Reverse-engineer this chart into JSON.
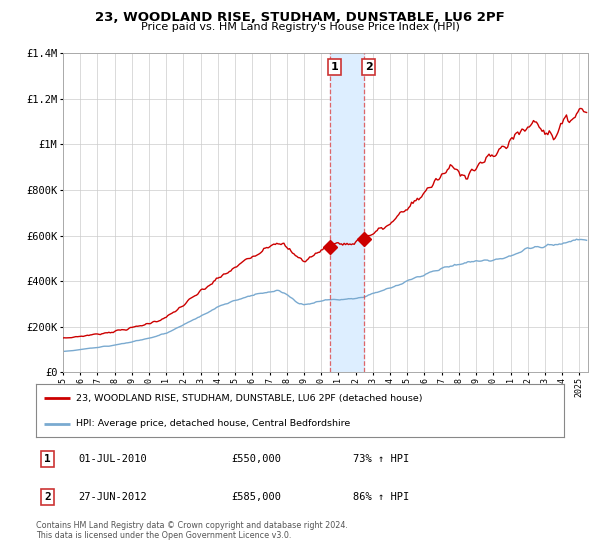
{
  "title": "23, WOODLAND RISE, STUDHAM, DUNSTABLE, LU6 2PF",
  "subtitle": "Price paid vs. HM Land Registry's House Price Index (HPI)",
  "legend_label_red": "23, WOODLAND RISE, STUDHAM, DUNSTABLE, LU6 2PF (detached house)",
  "legend_label_blue": "HPI: Average price, detached house, Central Bedfordshire",
  "footer": "Contains HM Land Registry data © Crown copyright and database right 2024.\nThis data is licensed under the Open Government Licence v3.0.",
  "sale1_label": "1",
  "sale1_date": "01-JUL-2010",
  "sale1_price": "£550,000",
  "sale1_hpi": "73% ↑ HPI",
  "sale2_label": "2",
  "sale2_date": "27-JUN-2012",
  "sale2_price": "£585,000",
  "sale2_hpi": "86% ↑ HPI",
  "ylim": [
    0,
    1400000
  ],
  "xlim_start": 1995.0,
  "xlim_end": 2025.5,
  "sale1_x": 2010.5,
  "sale1_y": 550000,
  "sale2_x": 2012.5,
  "sale2_y": 585000,
  "shade_x1": 2010.5,
  "shade_x2": 2012.5,
  "red_color": "#cc0000",
  "blue_color": "#7aaad0",
  "shade_color": "#ddeeff",
  "background_color": "#ffffff",
  "grid_color": "#cccccc"
}
